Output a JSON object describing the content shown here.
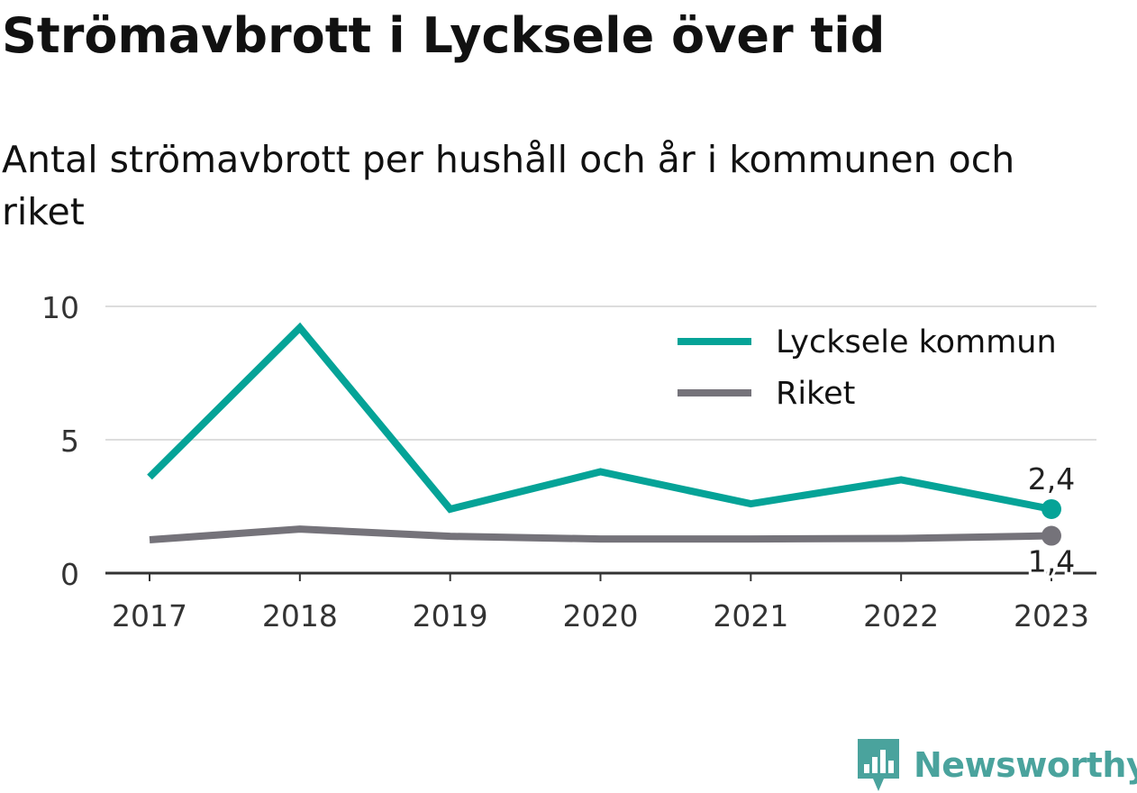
{
  "title": "Strömavbrott i Lycksele över tid",
  "subtitle": "Antal strömavbrott per hushåll och år i kommunen och riket",
  "brand": {
    "name": "Newsworthy",
    "color": "#4aa39d",
    "icon": "bar-chart-badge-icon"
  },
  "chart_data": {
    "type": "line",
    "x": [
      "2017",
      "2018",
      "2019",
      "2020",
      "2021",
      "2022",
      "2023"
    ],
    "ylim": [
      0,
      10
    ],
    "yticks": [
      "0",
      "5",
      "10"
    ],
    "grid": true,
    "legend_position": "top-right",
    "series": [
      {
        "name": "Lycksele kommun",
        "color": "#05a397",
        "values": [
          3.6,
          9.2,
          2.4,
          3.8,
          2.6,
          3.5,
          2.4
        ],
        "end_label": "2,4"
      },
      {
        "name": "Riket",
        "color": "#75737a",
        "values": [
          1.25,
          1.65,
          1.38,
          1.28,
          1.28,
          1.3,
          1.4
        ],
        "end_label": "1,4"
      }
    ]
  }
}
